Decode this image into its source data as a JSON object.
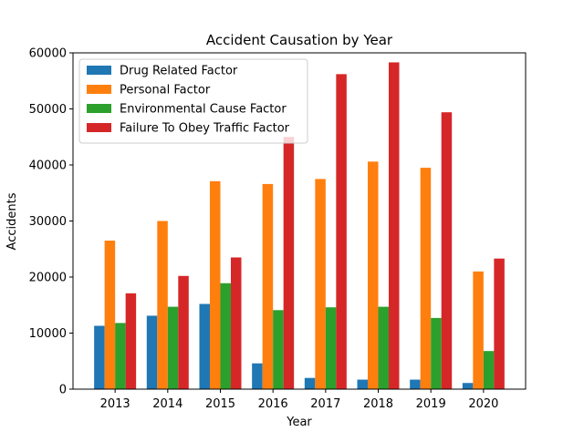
{
  "chart_data": {
    "type": "bar",
    "title": "Accident Causation by Year",
    "xlabel": "Year",
    "ylabel": "Accidents",
    "categories": [
      "2013",
      "2014",
      "2015",
      "2016",
      "2017",
      "2018",
      "2019",
      "2020"
    ],
    "ylim": [
      0,
      60000
    ],
    "yticks": [
      "0",
      "10000",
      "20000",
      "30000",
      "40000",
      "50000",
      "60000"
    ],
    "grid": false,
    "legend_position": "top-left",
    "series": [
      {
        "name": "Drug Related Factor",
        "color": "#1f77b4",
        "values": [
          11300,
          13100,
          15200,
          4600,
          2000,
          1700,
          1700,
          1100
        ]
      },
      {
        "name": "Personal Factor",
        "color": "#ff7f0e",
        "values": [
          26500,
          30000,
          37100,
          36600,
          37500,
          40600,
          39500,
          21000
        ]
      },
      {
        "name": "Environmental Cause Factor",
        "color": "#2ca02c",
        "values": [
          11800,
          14700,
          18900,
          14100,
          14600,
          14700,
          12700,
          6800
        ]
      },
      {
        "name": "Failure To Obey Traffic Factor",
        "color": "#d62728",
        "values": [
          17100,
          20200,
          23500,
          45000,
          56200,
          58300,
          49400,
          23300
        ]
      }
    ]
  }
}
